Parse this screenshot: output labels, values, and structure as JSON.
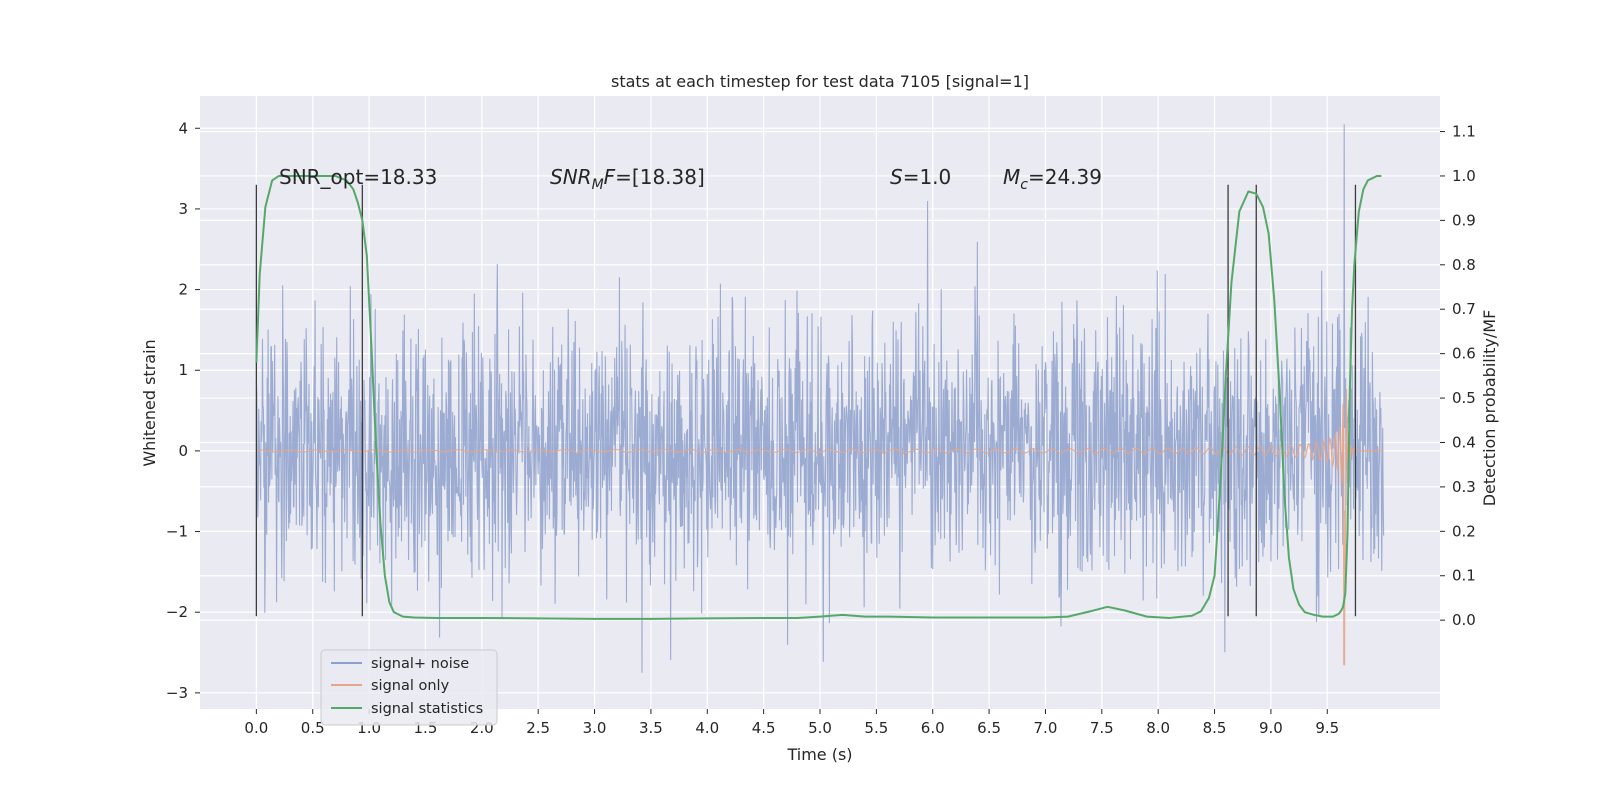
{
  "chart_data": {
    "type": "line",
    "title": "stats at each timestep for test data 7105 [signal=1]",
    "xlabel": "Time (s)",
    "ylabel": "Whitened strain",
    "ylabel_right": "Detection probability/MF",
    "xlim": [
      -0.5,
      10.5
    ],
    "ylim": [
      -3.2,
      4.4
    ],
    "ylim_right": [
      -0.2,
      1.18
    ],
    "x_ticks": [
      "0.0",
      "0.5",
      "1.0",
      "1.5",
      "2.0",
      "2.5",
      "3.0",
      "3.5",
      "4.0",
      "4.5",
      "5.0",
      "5.5",
      "6.0",
      "6.5",
      "7.0",
      "7.5",
      "8.0",
      "8.5",
      "9.0",
      "9.5"
    ],
    "y_ticks": [
      "−3",
      "−2",
      "−1",
      "0",
      "1",
      "2",
      "3",
      "4"
    ],
    "y_ticks_right": [
      "0.0",
      "0.1",
      "0.2",
      "0.3",
      "0.4",
      "0.5",
      "0.6",
      "0.7",
      "0.8",
      "0.9",
      "1.0",
      "1.1"
    ],
    "grid": true,
    "legend_position": "lower-left",
    "annotations": [
      {
        "text": "SNR_opt=18.33",
        "x": 0.2,
        "y": 3.4
      },
      {
        "text": "SNRMF=[18.38]",
        "x": 2.6,
        "y": 3.4
      },
      {
        "text": "S=1.0",
        "x": 5.6,
        "y": 3.4
      },
      {
        "text": "Mc=24.39",
        "x": 6.6,
        "y": 3.4
      }
    ],
    "vertical_markers": [
      {
        "x": 0.0,
        "ymin": -2.05,
        "ymax": 3.3
      },
      {
        "x": 0.94,
        "ymin": -2.05,
        "ymax": 3.3
      },
      {
        "x": 8.62,
        "ymin": -2.05,
        "ymax": 3.3
      },
      {
        "x": 8.87,
        "ymin": -2.05,
        "ymax": 3.3
      },
      {
        "x": 9.75,
        "ymin": -2.05,
        "ymax": 3.3
      }
    ],
    "series": [
      {
        "name": "signal+ noise",
        "color": "#8da0cb",
        "axis": "left",
        "x_range": [
          0,
          10
        ],
        "typical_amplitude": 1.15,
        "min": -2.75,
        "max": 4.05
      },
      {
        "name": "signal only",
        "color": "#e5a58a",
        "axis": "left",
        "merger_time": 9.65,
        "peak_amplitude": 2.65,
        "min": -2.65
      },
      {
        "name": "signal statistics",
        "color": "#55a868",
        "axis": "right",
        "x": [
          0.0,
          0.03,
          0.08,
          0.14,
          0.2,
          0.3,
          0.5,
          0.7,
          0.8,
          0.86,
          0.9,
          0.94,
          0.98,
          1.02,
          1.06,
          1.1,
          1.14,
          1.18,
          1.22,
          1.3,
          1.4,
          1.6,
          2.0,
          3.0,
          3.5,
          4.0,
          4.5,
          4.8,
          5.0,
          5.2,
          5.4,
          5.6,
          6.0,
          6.5,
          7.0,
          7.2,
          7.4,
          7.55,
          7.7,
          7.9,
          8.1,
          8.3,
          8.38,
          8.45,
          8.5,
          8.55,
          8.6,
          8.65,
          8.72,
          8.8,
          8.87,
          8.93,
          8.98,
          9.03,
          9.08,
          9.12,
          9.16,
          9.2,
          9.25,
          9.3,
          9.38,
          9.46,
          9.55,
          9.6,
          9.62,
          9.64,
          9.66,
          9.68,
          9.7,
          9.72,
          9.74,
          9.76,
          9.78,
          9.82,
          9.86,
          9.9,
          9.94,
          9.98
        ],
        "y": [
          0.58,
          0.78,
          0.93,
          0.99,
          1.0,
          1.0,
          1.0,
          1.0,
          0.99,
          0.97,
          0.94,
          0.9,
          0.82,
          0.62,
          0.4,
          0.22,
          0.1,
          0.04,
          0.018,
          0.008,
          0.006,
          0.005,
          0.005,
          0.003,
          0.003,
          0.004,
          0.005,
          0.005,
          0.008,
          0.012,
          0.008,
          0.008,
          0.006,
          0.006,
          0.006,
          0.008,
          0.02,
          0.03,
          0.022,
          0.008,
          0.005,
          0.01,
          0.02,
          0.05,
          0.1,
          0.3,
          0.55,
          0.76,
          0.92,
          0.965,
          0.96,
          0.93,
          0.87,
          0.72,
          0.5,
          0.28,
          0.14,
          0.07,
          0.035,
          0.018,
          0.012,
          0.008,
          0.008,
          0.014,
          0.02,
          0.03,
          0.06,
          0.2,
          0.52,
          0.7,
          0.8,
          0.86,
          0.92,
          0.97,
          0.99,
          0.995,
          1.0,
          1.0
        ]
      }
    ]
  }
}
